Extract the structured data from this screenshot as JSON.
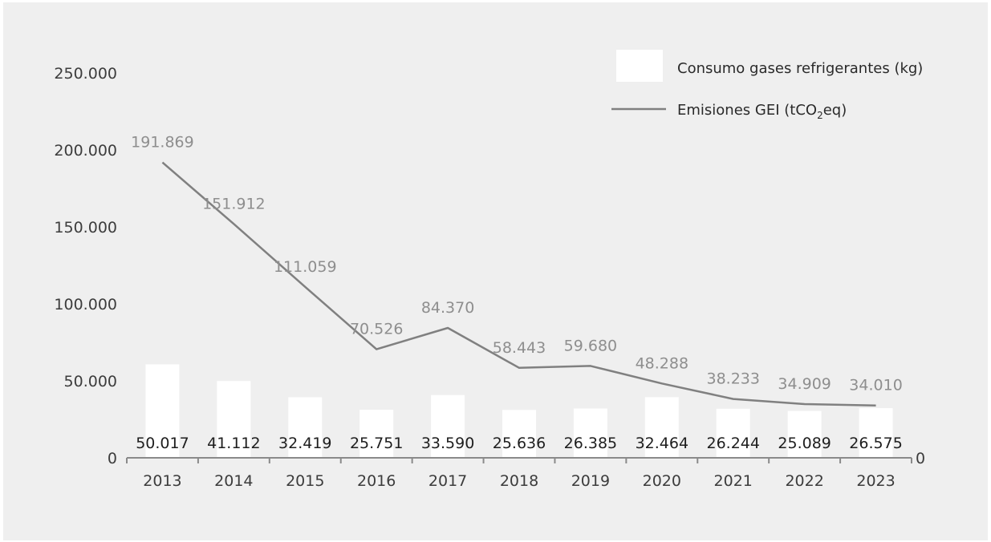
{
  "chart_data": {
    "type": "bar+line",
    "title": "",
    "categories": [
      "2013",
      "2014",
      "2015",
      "2016",
      "2017",
      "2018",
      "2019",
      "2020",
      "2021",
      "2022",
      "2023"
    ],
    "series": [
      {
        "name": "Consumo gases refrigerantes (kg)",
        "type": "bar",
        "axis": "right",
        "values": [
          50017,
          41112,
          32419,
          25751,
          33590,
          25636,
          26385,
          32464,
          26244,
          25089,
          26575
        ],
        "labels": [
          "50.017",
          "41.112",
          "32.419",
          "25.751",
          "33.590",
          "25.636",
          "26.385",
          "32.464",
          "26.244",
          "25.089",
          "26.575"
        ],
        "color": "#ffffff"
      },
      {
        "name": "Emisiones GEI (tCO",
        "name_sub": "2",
        "name_tail": "eq)",
        "type": "line",
        "axis": "left",
        "values": [
          191869,
          151912,
          111059,
          70526,
          84370,
          58443,
          59680,
          48288,
          38233,
          34909,
          34010
        ],
        "labels": [
          "191.869",
          "151.912",
          "111.059",
          "70.526",
          "84.370",
          "58.443",
          "59.680",
          "48.288",
          "38.233",
          "34.909",
          "34.010"
        ],
        "color": "#808080"
      }
    ],
    "y_left": {
      "ticks": [
        "0",
        "50.000",
        "100.000",
        "150.000",
        "200.000",
        "250.000"
      ],
      "range": [
        0,
        250000
      ]
    },
    "y_right": {
      "ticks": [
        "0"
      ]
    },
    "grid": false,
    "legend_position": "top-right"
  },
  "colors": {
    "panel_bg": "#efefef",
    "bar": "#ffffff",
    "line": "#808080",
    "axis": "#8a8a8a"
  }
}
